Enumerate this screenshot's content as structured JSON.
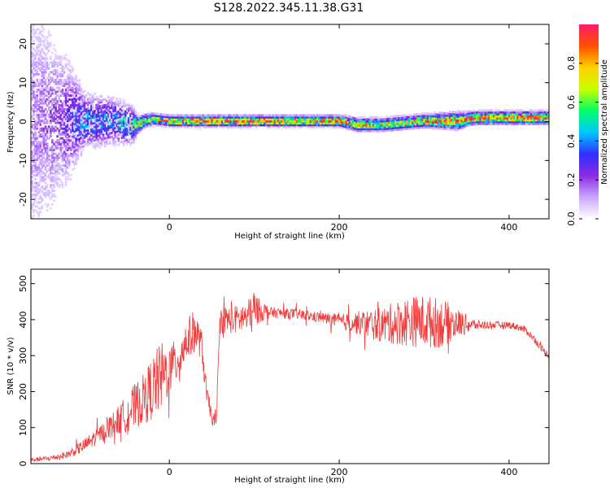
{
  "title": "S128.2022.345.11.38.G31",
  "chart_data": [
    {
      "type": "heatmap",
      "xlabel": "Height of straight line (km)",
      "ylabel": "Frequency (Hz)",
      "xlim": [
        -163,
        447
      ],
      "ylim": [
        -25,
        25
      ],
      "xticks": [
        0,
        200,
        400
      ],
      "yticks": [
        -20,
        -10,
        0,
        10,
        20
      ],
      "colorbar": {
        "label": "Normalized spectral amplitude",
        "range": [
          0.0,
          1.0
        ],
        "ticks": [
          0.0,
          0.2,
          0.4,
          0.6,
          0.8
        ],
        "colormap": [
          "#ffffff",
          "#c9a6ff",
          "#8a2be2",
          "#2f2fff",
          "#00c8ff",
          "#00ff66",
          "#c8ff00",
          "#ffd000",
          "#ff5000",
          "#ff1a6e"
        ]
      },
      "ridge": {
        "x": [
          -160,
          -130,
          -100,
          -70,
          -45,
          -38,
          -30,
          -20,
          0,
          50,
          100,
          150,
          200,
          220,
          250,
          300,
          340,
          350,
          360,
          447
        ],
        "freq": [
          0,
          0,
          0,
          0,
          -1,
          -1,
          0,
          0.5,
          0,
          0,
          0,
          0,
          0,
          -1,
          -1,
          0,
          0,
          0.5,
          0.8,
          0.8
        ],
        "peak_amplitude": [
          0.15,
          0.2,
          0.45,
          0.4,
          0.55,
          0.7,
          0.8,
          0.75,
          0.85,
          0.95,
          0.95,
          0.85,
          1.0,
          0.8,
          0.75,
          0.85,
          0.95,
          1.0,
          0.9,
          0.9
        ],
        "halfwidth": [
          25,
          15,
          5,
          4.5,
          3.5,
          1.5,
          1.2,
          1.0,
          1.0,
          1.0,
          1.0,
          1.0,
          1.0,
          1.2,
          1.2,
          1.2,
          1.5,
          1.2,
          1.2,
          1.2
        ]
      }
    },
    {
      "type": "line",
      "xlabel": "Height of straight line (km)",
      "ylabel": "SNR (10 * v/v)",
      "xlim": [
        -163,
        447
      ],
      "ylim": [
        0,
        540
      ],
      "xticks": [
        0,
        200,
        400
      ],
      "yticks": [
        0,
        100,
        200,
        300,
        400,
        500
      ],
      "color": "#f03c3c",
      "x": [
        -163,
        -140,
        -120,
        -100,
        -80,
        -60,
        -45,
        -30,
        -20,
        -10,
        0,
        10,
        20,
        30,
        38,
        44,
        50,
        55,
        60,
        80,
        95,
        100,
        105,
        120,
        150,
        180,
        200,
        250,
        280,
        300,
        320,
        340,
        360,
        380,
        400,
        410,
        420,
        430,
        440,
        447
      ],
      "y": [
        10,
        15,
        25,
        50,
        85,
        120,
        150,
        180,
        210,
        240,
        260,
        290,
        340,
        370,
        330,
        190,
        130,
        110,
        400,
        400,
        410,
        420,
        425,
        420,
        415,
        405,
        395,
        385,
        395,
        395,
        390,
        390,
        385,
        385,
        385,
        380,
        370,
        345,
        315,
        300
      ],
      "noise": [
        5,
        8,
        10,
        20,
        25,
        40,
        60,
        70,
        90,
        100,
        70,
        60,
        60,
        60,
        40,
        30,
        20,
        20,
        40,
        40,
        50,
        60,
        35,
        15,
        15,
        15,
        20,
        50,
        70,
        75,
        70,
        40,
        15,
        10,
        10,
        10,
        10,
        10,
        10,
        10
      ]
    }
  ]
}
